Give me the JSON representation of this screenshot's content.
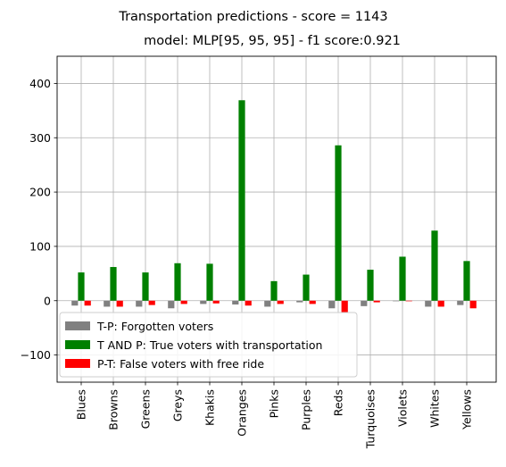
{
  "chart_data": {
    "type": "bar",
    "suptitle": "Transportation predictions - score = 1143",
    "title": "model: MLP[95, 95, 95] - f1 score:0.921",
    "xlabel": "",
    "ylabel": "",
    "categories": [
      "Blues",
      "Browns",
      "Greens",
      "Greys",
      "Khakis",
      "Oranges",
      "Pinks",
      "Purples",
      "Reds",
      "Turquoises",
      "Violets",
      "Whites",
      "Yellows"
    ],
    "series": [
      {
        "name": "T-P: Forgotten voters",
        "color": "#808080",
        "values": [
          -9,
          -11,
          -11,
          -14,
          -6,
          -7,
          -11,
          -3,
          -14,
          -10,
          -1,
          -11,
          -8
        ]
      },
      {
        "name": "T AND P: True voters with transportation",
        "color": "#008000",
        "values": [
          52,
          62,
          52,
          69,
          68,
          369,
          36,
          48,
          286,
          57,
          81,
          129,
          73
        ]
      },
      {
        "name": "P-T: False voters with free ride",
        "color": "#ff0000",
        "values": [
          -9,
          -11,
          -8,
          -6,
          -5,
          -9,
          -6,
          -6,
          -22,
          -3,
          -1,
          -11,
          -14
        ]
      }
    ],
    "ylim": [
      -150,
      450
    ],
    "yticks": [
      -100,
      0,
      100,
      200,
      300,
      400
    ],
    "ytick_labels": [
      "−100",
      "0",
      "100",
      "200",
      "300",
      "400"
    ],
    "grid": true,
    "legend_position": "lower-left"
  }
}
